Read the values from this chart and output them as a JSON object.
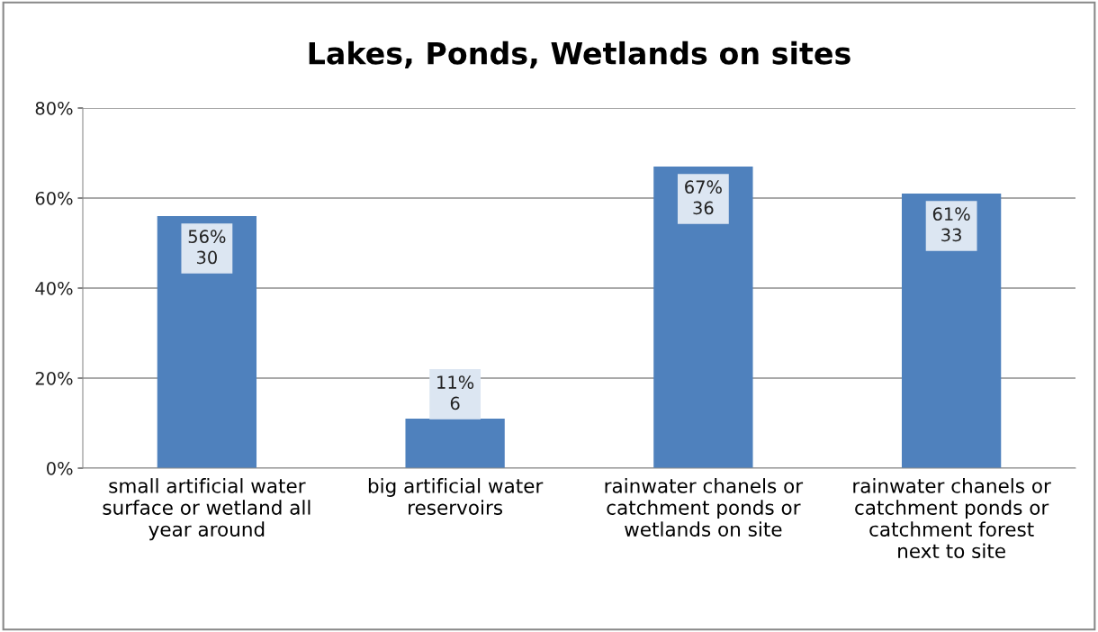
{
  "chart_data": {
    "type": "bar",
    "title": "Lakes, Ponds, Wetlands on sites",
    "categories": [
      "small artificial water\nsurface or wetland all\nyear around",
      "big artificial water\nreservoirs",
      "rainwater chanels or\ncatchment ponds or\nwetlands on site",
      "rainwater chanels or\ncatchment ponds or\ncatchment forest\nnext to site"
    ],
    "values": [
      56,
      11,
      67,
      61
    ],
    "value_labels": [
      "56%\n30",
      "11%\n6",
      "67%\n36",
      "61%\n33"
    ],
    "color": "#4f81bd",
    "ylim": [
      0,
      80
    ],
    "yticks": [
      {
        "value": 0,
        "label": "0%"
      },
      {
        "value": 20,
        "label": "20%"
      },
      {
        "value": 40,
        "label": "40%"
      },
      {
        "value": 60,
        "label": "60%"
      },
      {
        "value": 80,
        "label": "80%"
      }
    ],
    "grid": "y",
    "legend": false
  }
}
